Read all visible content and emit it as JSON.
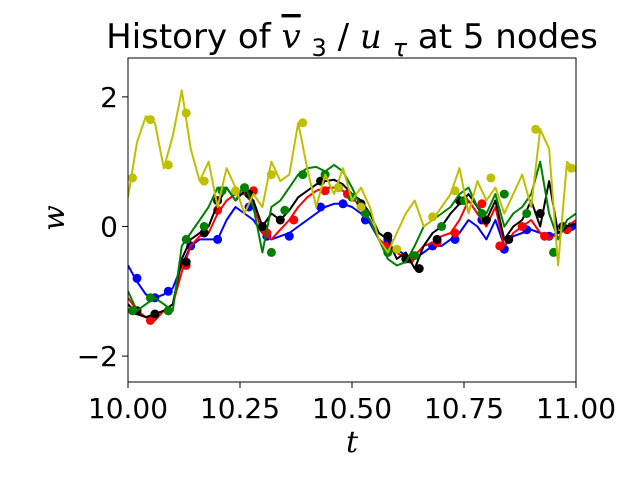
{
  "chart_data": {
    "type": "line",
    "title": "History of v̄₃/u_τ at 5 nodes",
    "title_parts": {
      "pre": "History of ",
      "var": "v",
      "sub": "3",
      "slash": "/",
      "var2": "u",
      "sub2": "τ",
      "post": " at 5 nodes"
    },
    "xlabel": "t",
    "ylabel": "w",
    "xlim": [
      10.0,
      11.0
    ],
    "ylim": [
      -2.4,
      2.6
    ],
    "xticks": [
      10.0,
      10.25,
      10.5,
      10.75,
      11.0
    ],
    "xtick_labels": [
      "10.00",
      "10.25",
      "10.50",
      "10.75",
      "11.00"
    ],
    "yticks": [
      -2,
      0,
      2
    ],
    "ytick_labels": [
      "−2",
      "0",
      "2"
    ],
    "grid": false,
    "series": [
      {
        "color": "#0000ff",
        "x": [
          10.0,
          10.02,
          10.04,
          10.06,
          10.08,
          10.1,
          10.12,
          10.14,
          10.16,
          10.18,
          10.2,
          10.22,
          10.24,
          10.26,
          10.28,
          10.3,
          10.32,
          10.34,
          10.36,
          10.38,
          10.4,
          10.42,
          10.44,
          10.46,
          10.48,
          10.5,
          10.52,
          10.54,
          10.56,
          10.58,
          10.6,
          10.62,
          10.64,
          10.66,
          10.68,
          10.7,
          10.72,
          10.74,
          10.76,
          10.78,
          10.8,
          10.82,
          10.84,
          10.86,
          10.88,
          10.9,
          10.92,
          10.94,
          10.96,
          10.98,
          11.0
        ],
        "y": [
          -0.6,
          -0.85,
          -1.05,
          -1.1,
          -1.05,
          -0.95,
          -0.6,
          -0.3,
          -0.2,
          -0.2,
          -0.2,
          0.1,
          0.3,
          0.2,
          0.1,
          -0.1,
          -0.2,
          -0.15,
          -0.1,
          0.0,
          0.1,
          0.2,
          0.3,
          0.35,
          0.35,
          0.3,
          0.2,
          0.05,
          -0.2,
          -0.3,
          -0.35,
          -0.45,
          -0.5,
          -0.4,
          -0.3,
          -0.3,
          -0.2,
          -0.1,
          0.1,
          0.0,
          -0.2,
          0.1,
          -0.3,
          -0.15,
          -0.1,
          -0.05,
          -0.1,
          -0.15,
          -0.1,
          -0.05,
          0.0
        ],
        "markers_x": [
          10.02,
          10.06,
          10.09,
          10.14,
          10.2,
          10.27,
          10.31,
          10.36,
          10.43,
          10.48,
          10.53,
          10.58,
          10.63,
          10.68,
          10.73,
          10.79,
          10.84,
          10.89,
          10.94,
          10.99
        ],
        "markers_y": [
          -0.8,
          -1.1,
          -1.0,
          -0.3,
          -0.2,
          0.3,
          -0.15,
          -0.15,
          0.3,
          0.35,
          0.1,
          -0.2,
          -0.5,
          -0.3,
          -0.2,
          0.1,
          -0.35,
          -0.05,
          -0.15,
          0.0
        ]
      },
      {
        "color": "#ff0000",
        "x": [
          10.0,
          10.02,
          10.04,
          10.06,
          10.08,
          10.1,
          10.12,
          10.14,
          10.16,
          10.18,
          10.2,
          10.22,
          10.24,
          10.26,
          10.28,
          10.3,
          10.32,
          10.34,
          10.36,
          10.38,
          10.4,
          10.42,
          10.44,
          10.46,
          10.48,
          10.5,
          10.52,
          10.54,
          10.56,
          10.58,
          10.6,
          10.62,
          10.64,
          10.66,
          10.68,
          10.7,
          10.72,
          10.74,
          10.76,
          10.78,
          10.8,
          10.82,
          10.84,
          10.86,
          10.88,
          10.9,
          10.92,
          10.94,
          10.96,
          10.98,
          11.0
        ],
        "y": [
          -1.1,
          -1.3,
          -1.4,
          -1.45,
          -1.3,
          -1.2,
          -0.7,
          -0.3,
          -0.15,
          -0.1,
          0.2,
          0.4,
          0.5,
          0.5,
          0.35,
          -0.1,
          -0.2,
          -0.05,
          0.1,
          0.3,
          0.45,
          0.55,
          0.6,
          0.6,
          0.55,
          0.45,
          0.3,
          0.1,
          -0.2,
          -0.3,
          -0.4,
          -0.5,
          -0.45,
          -0.3,
          -0.25,
          -0.15,
          -0.1,
          0.1,
          0.4,
          0.2,
          0.0,
          0.3,
          -0.3,
          -0.1,
          0.0,
          0.1,
          -0.1,
          -0.2,
          -0.1,
          0.0,
          0.1
        ],
        "markers_x": [
          10.02,
          10.05,
          10.09,
          10.13,
          10.2,
          10.28,
          10.31,
          10.37,
          10.44,
          10.49,
          10.53,
          10.58,
          10.63,
          10.69,
          10.73,
          10.79,
          10.83,
          10.88,
          10.93,
          10.98
        ],
        "markers_y": [
          -1.3,
          -1.45,
          -1.3,
          -0.6,
          0.25,
          0.55,
          -0.1,
          0.1,
          0.55,
          0.5,
          0.2,
          -0.3,
          -0.5,
          -0.25,
          -0.1,
          0.35,
          -0.3,
          0.0,
          -0.15,
          -0.05
        ]
      },
      {
        "color": "#000000",
        "x": [
          10.0,
          10.02,
          10.04,
          10.06,
          10.08,
          10.1,
          10.12,
          10.14,
          10.16,
          10.18,
          10.2,
          10.22,
          10.24,
          10.26,
          10.28,
          10.3,
          10.32,
          10.34,
          10.36,
          10.38,
          10.4,
          10.42,
          10.44,
          10.46,
          10.48,
          10.5,
          10.52,
          10.54,
          10.56,
          10.58,
          10.6,
          10.62,
          10.64,
          10.66,
          10.68,
          10.7,
          10.72,
          10.74,
          10.76,
          10.78,
          10.8,
          10.82,
          10.84,
          10.86,
          10.88,
          10.9,
          10.92,
          10.94,
          10.96,
          10.98,
          11.0
        ],
        "y": [
          -1.2,
          -1.35,
          -1.4,
          -1.35,
          -1.3,
          -1.2,
          -0.5,
          -0.2,
          -0.1,
          0.0,
          0.35,
          0.6,
          0.4,
          0.55,
          0.4,
          0.0,
          0.2,
          0.1,
          0.25,
          0.45,
          0.55,
          0.65,
          0.7,
          0.72,
          0.65,
          0.5,
          0.4,
          0.2,
          -0.1,
          -0.2,
          -0.5,
          -0.4,
          -0.65,
          -0.3,
          -0.1,
          0.0,
          0.2,
          0.35,
          0.5,
          0.3,
          0.1,
          0.4,
          -0.2,
          0.0,
          0.1,
          0.4,
          0.0,
          0.7,
          -0.1,
          0.0,
          0.05
        ],
        "markers_x": [
          10.02,
          10.06,
          10.09,
          10.13,
          10.17,
          10.2,
          10.27,
          10.3,
          10.34,
          10.43,
          10.47,
          10.52,
          10.58,
          10.62,
          10.65,
          10.69,
          10.74,
          10.8,
          10.85,
          10.92,
          10.97
        ],
        "markers_y": [
          -1.3,
          -1.35,
          -1.3,
          -0.55,
          -0.1,
          0.4,
          0.5,
          0.0,
          0.1,
          0.7,
          0.6,
          0.35,
          -0.15,
          -0.5,
          -0.65,
          -0.2,
          0.4,
          0.1,
          -0.2,
          0.2,
          0.0
        ]
      },
      {
        "color": "#008000",
        "x": [
          10.0,
          10.02,
          10.04,
          10.06,
          10.08,
          10.1,
          10.12,
          10.14,
          10.16,
          10.18,
          10.2,
          10.22,
          10.24,
          10.26,
          10.28,
          10.3,
          10.32,
          10.34,
          10.36,
          10.38,
          10.4,
          10.42,
          10.44,
          10.46,
          10.48,
          10.5,
          10.52,
          10.54,
          10.56,
          10.58,
          10.6,
          10.62,
          10.64,
          10.66,
          10.68,
          10.7,
          10.72,
          10.74,
          10.76,
          10.78,
          10.8,
          10.82,
          10.84,
          10.86,
          10.88,
          10.9,
          10.92,
          10.94,
          10.96,
          10.98,
          11.0
        ],
        "y": [
          -1.0,
          -1.3,
          -1.2,
          -1.1,
          -1.2,
          -1.3,
          -0.3,
          -0.1,
          0.1,
          0.3,
          0.6,
          0.6,
          0.4,
          0.65,
          0.3,
          -0.4,
          0.3,
          0.4,
          0.6,
          0.8,
          0.9,
          0.92,
          0.85,
          0.95,
          0.85,
          0.6,
          0.3,
          0.1,
          -0.2,
          -0.5,
          -0.6,
          -0.55,
          -0.3,
          0.0,
          0.1,
          0.2,
          0.3,
          0.5,
          0.6,
          0.3,
          0.2,
          0.5,
          0.0,
          0.2,
          0.3,
          0.5,
          1.0,
          0.2,
          -0.2,
          0.1,
          0.2
        ],
        "markers_x": [
          10.01,
          10.05,
          10.09,
          10.13,
          10.17,
          10.21,
          10.26,
          10.32,
          10.35,
          10.39,
          10.44,
          10.5,
          10.53,
          10.58,
          10.64,
          10.7,
          10.75,
          10.79,
          10.84,
          10.89,
          10.95
        ],
        "markers_y": [
          -1.3,
          -1.1,
          -1.3,
          -0.2,
          0.0,
          0.55,
          0.6,
          -0.4,
          0.25,
          0.8,
          0.8,
          0.45,
          0.2,
          -0.4,
          -0.45,
          0.0,
          0.4,
          0.2,
          0.5,
          0.2,
          -0.4
        ]
      },
      {
        "color": "#bfbf00",
        "x": [
          10.0,
          10.02,
          10.04,
          10.06,
          10.08,
          10.1,
          10.12,
          10.14,
          10.16,
          10.18,
          10.2,
          10.22,
          10.24,
          10.26,
          10.28,
          10.3,
          10.32,
          10.34,
          10.36,
          10.38,
          10.4,
          10.42,
          10.44,
          10.46,
          10.48,
          10.5,
          10.52,
          10.54,
          10.56,
          10.58,
          10.6,
          10.62,
          10.64,
          10.66,
          10.68,
          10.7,
          10.72,
          10.74,
          10.76,
          10.78,
          10.8,
          10.82,
          10.84,
          10.86,
          10.88,
          10.9,
          10.92,
          10.94,
          10.96,
          10.98,
          11.0
        ],
        "y": [
          0.45,
          1.3,
          1.7,
          1.6,
          0.9,
          1.4,
          2.1,
          1.2,
          0.7,
          1.0,
          0.3,
          0.9,
          0.6,
          0.2,
          0.5,
          0.3,
          1.0,
          0.7,
          0.8,
          1.6,
          0.9,
          0.3,
          0.8,
          0.5,
          0.9,
          0.4,
          0.6,
          0.3,
          -0.2,
          -0.4,
          -0.1,
          0.2,
          0.4,
          0.0,
          0.1,
          0.3,
          0.5,
          0.9,
          0.2,
          0.7,
          0.4,
          0.6,
          0.2,
          0.5,
          0.8,
          0.3,
          1.5,
          1.2,
          -0.6,
          1.0,
          0.85
        ],
        "markers_x": [
          10.01,
          10.05,
          10.09,
          10.13,
          10.17,
          10.24,
          10.32,
          10.39,
          10.47,
          10.52,
          10.6,
          10.68,
          10.73,
          10.81,
          10.91,
          10.99
        ],
        "markers_y": [
          0.75,
          1.65,
          0.95,
          1.75,
          0.7,
          0.55,
          0.8,
          1.6,
          0.6,
          0.3,
          -0.35,
          0.15,
          0.55,
          0.75,
          1.5,
          0.9
        ]
      }
    ]
  }
}
